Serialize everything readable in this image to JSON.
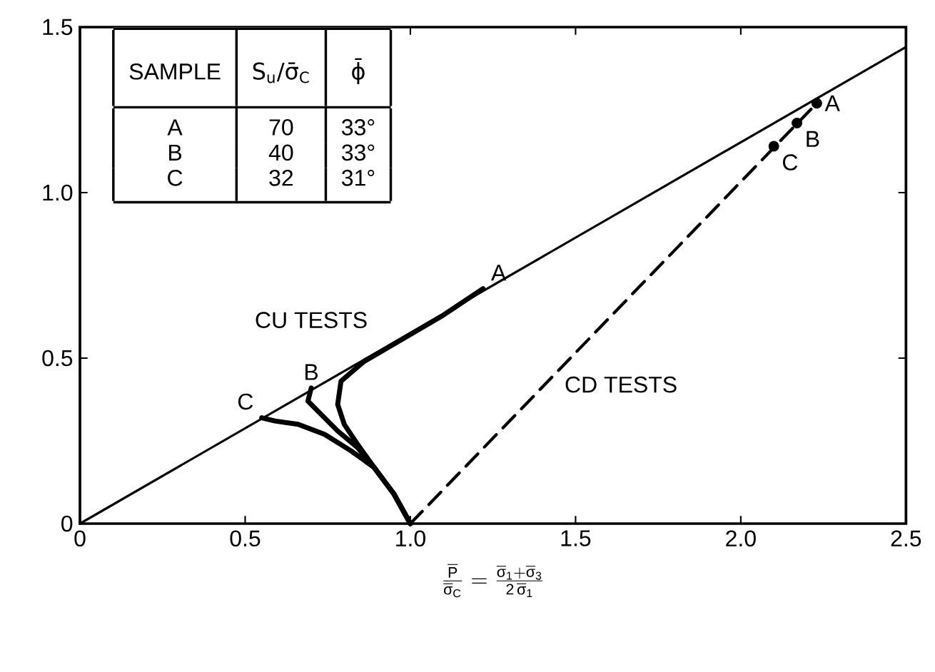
{
  "chart_data": {
    "type": "line",
    "xlabel": "\\frac{\\overline{\\mathrm{P}}}{\\overline{\\mathrm{σ}}_{\\mathrm{C}}}=\\frac{\\overline{\\mathrm{σ}}_{\\mathrm{1}}+\\overline{\\mathrm{σ}}_{\\mathrm{3}}}{\\mathrm{2}\\,\\overline{\\mathrm{σ}}_{\\mathrm{1}}}",
    "xlim": [
      0,
      2.5
    ],
    "ylim": [
      0,
      1.5
    ],
    "xticks": [
      0,
      {
        "value": 0.5,
        "label": "0.5"
      },
      {
        "value": 1,
        "label": "1.0"
      },
      {
        "value": 1.5,
        "label": "1.5"
      },
      {
        "value": 2,
        "label": "2.0"
      },
      {
        "value": 2.5,
        "label": "2.5"
      }
    ],
    "yticks": [
      0,
      {
        "value": 0.5,
        "label": "0.5"
      },
      {
        "value": 1,
        "label": "1.0"
      },
      {
        "value": 1.5,
        "label": "1.5"
      }
    ],
    "grid": false,
    "marker": "none",
    "series": [
      {
        "color": "#000000",
        "line_style": "solid",
        "x": [
          0,
          2.5
        ],
        "values": [
          0,
          1.44
        ]
      },
      {
        "color": "#000000",
        "line_style": "solid",
        "x": [
          1.0,
          0.95,
          0.89,
          0.84,
          0.8,
          0.78,
          0.79,
          0.86,
          0.98,
          1.1,
          1.22
        ],
        "values": [
          0,
          0.09,
          0.17,
          0.24,
          0.3,
          0.36,
          0.43,
          0.49,
          0.56,
          0.63,
          0.71
        ]
      },
      {
        "color": "#000000",
        "line_style": "solid",
        "x": [
          1.0,
          0.95,
          0.89,
          0.84,
          0.78,
          0.73,
          0.69,
          0.7
        ],
        "values": [
          0,
          0.09,
          0.17,
          0.23,
          0.28,
          0.33,
          0.37,
          0.41
        ]
      },
      {
        "color": "#000000",
        "line_style": "solid",
        "x": [
          1.0,
          0.95,
          0.89,
          0.82,
          0.74,
          0.66,
          0.59,
          0.55
        ],
        "values": [
          0,
          0.09,
          0.17,
          0.22,
          0.27,
          0.3,
          0.31,
          0.32
        ]
      },
      {
        "color": "#000000",
        "line_style": "dashed",
        "x": [
          1.0,
          2.23
        ],
        "values": [
          0,
          1.27
        ]
      },
      {
        "type": "scatter",
        "color": "#000000",
        "marker": "circle",
        "x": [
          2.1,
          2.17,
          2.23
        ],
        "values": [
          1.14,
          1.21,
          1.27
        ]
      }
    ],
    "annotations": [
      "SAMPLE",
      "S$_{u}$/σ̄$_{C}$",
      "ϕ̄",
      "A",
      "70",
      "33°",
      "B",
      "40",
      "33°",
      "C",
      "32",
      "31°",
      {
        "text": "A",
        "x": 1.22,
        "y": 0.71
      },
      {
        "text": "B",
        "x": 0.7,
        "y": 0.41
      },
      {
        "text": "C",
        "x": 0.55,
        "y": 0.32
      },
      {
        "text": "A",
        "x": 2.23,
        "y": 1.27
      },
      {
        "text": "B",
        "x": 2.17,
        "y": 1.21
      },
      {
        "text": "C",
        "x": 2.1,
        "y": 1.14
      },
      "CU TESTS",
      "CD TESTS"
    ]
  }
}
